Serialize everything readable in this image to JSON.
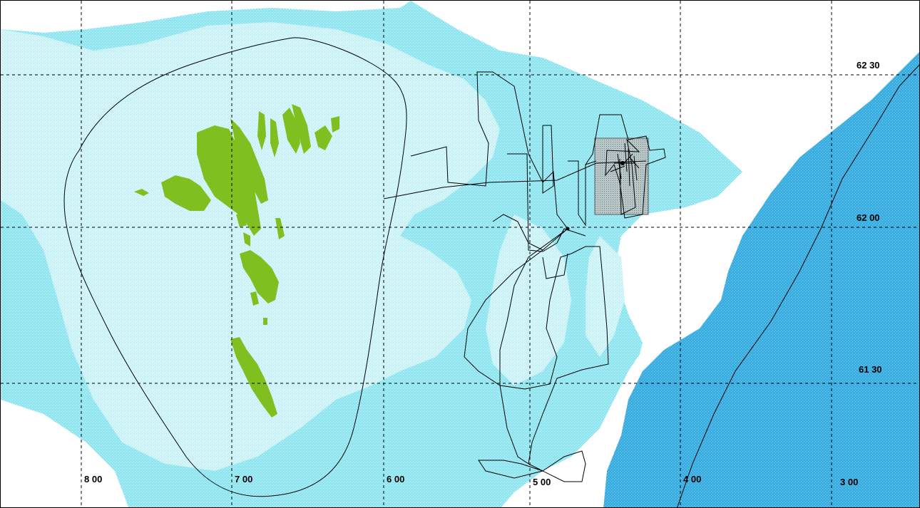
{
  "colors": {
    "background": "#ffffff",
    "shelf_light": "#c9f3f7",
    "shelf_mid": "#9feaf2",
    "deep_water": "#3aaee0",
    "land": "#7fbf1f",
    "survey_box": "#b9c7c9",
    "lines": "#000000"
  },
  "grid_labels": {
    "lon": [
      "8 00",
      "7 00",
      "6 00",
      "5 00",
      "4 00",
      "3 00"
    ],
    "lat": [
      "62 30",
      "62 00",
      "61 30"
    ]
  },
  "features": {
    "islands": "faroe-islands",
    "survey_area": "survey-box",
    "tracks": [
      "circuit-track",
      "survey-track",
      "transit-track"
    ]
  }
}
